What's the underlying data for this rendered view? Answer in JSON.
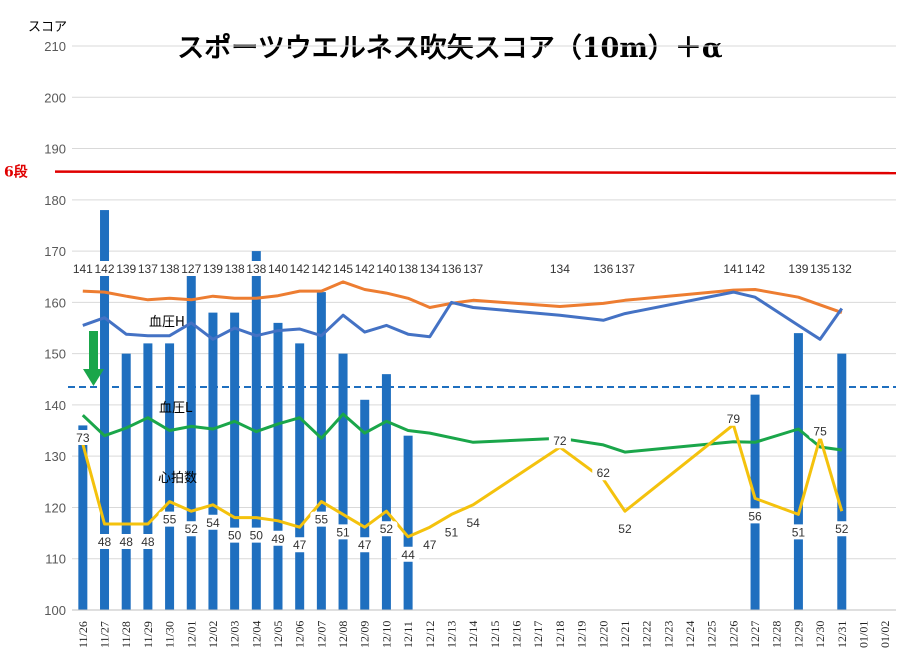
{
  "chart_data": {
    "type": "bar",
    "title": "スポーツウエルネス吹矢スコア（10m）＋α",
    "ylabel": "スコア",
    "ylim": [
      100,
      210
    ],
    "yticks": [
      100,
      110,
      120,
      130,
      140,
      150,
      160,
      170,
      180,
      190,
      200,
      210
    ],
    "grid": true,
    "categories": [
      "11/26",
      "11/27",
      "11/28",
      "11/29",
      "11/30",
      "12/01",
      "12/02",
      "12/03",
      "12/04",
      "12/05",
      "12/06",
      "12/07",
      "12/08",
      "12/09",
      "12/10",
      "12/11",
      "12/12",
      "12/13",
      "12/14",
      "12/15",
      "12/16",
      "12/17",
      "12/18",
      "12/19",
      "12/20",
      "12/21",
      "12/22",
      "12/23",
      "12/24",
      "12/25",
      "12/26",
      "12/27",
      "12/28",
      "12/29",
      "12/30",
      "12/31",
      "01/01",
      "01/02"
    ],
    "series": [
      {
        "kind": "bar",
        "color": "#1f6fbf",
        "points": [
          {
            "x": "11/26",
            "y": 136
          },
          {
            "x": "11/27",
            "y": 178
          },
          {
            "x": "11/28",
            "y": 150
          },
          {
            "x": "11/29",
            "y": 152
          },
          {
            "x": "11/30",
            "y": 152
          },
          {
            "x": "12/01",
            "y": 168
          },
          {
            "x": "12/02",
            "y": 158
          },
          {
            "x": "12/03",
            "y": 158
          },
          {
            "x": "12/04",
            "y": 170
          },
          {
            "x": "12/05",
            "y": 156
          },
          {
            "x": "12/06",
            "y": 152
          },
          {
            "x": "12/07",
            "y": 162
          },
          {
            "x": "12/08",
            "y": 150
          },
          {
            "x": "12/09",
            "y": 141
          },
          {
            "x": "12/10",
            "y": 146
          },
          {
            "x": "12/11",
            "y": 134
          },
          {
            "x": "12/27",
            "y": 142
          },
          {
            "x": "12/29",
            "y": 154
          },
          {
            "x": "12/31",
            "y": 150
          }
        ]
      },
      {
        "name": "血圧H",
        "kind": "line",
        "color": "#4472c4",
        "points": [
          {
            "x": "11/26",
            "y": 155.5
          },
          {
            "x": "11/27",
            "y": 157
          },
          {
            "x": "11/28",
            "y": 153.8
          },
          {
            "x": "11/29",
            "y": 153.5
          },
          {
            "x": "11/30",
            "y": 153.5
          },
          {
            "x": "12/01",
            "y": 156
          },
          {
            "x": "12/02",
            "y": 152.8
          },
          {
            "x": "12/03",
            "y": 155
          },
          {
            "x": "12/04",
            "y": 153.5
          },
          {
            "x": "12/05",
            "y": 154.5
          },
          {
            "x": "12/06",
            "y": 154.8
          },
          {
            "x": "12/07",
            "y": 153.5
          },
          {
            "x": "12/08",
            "y": 157.5
          },
          {
            "x": "12/09",
            "y": 154.2
          },
          {
            "x": "12/10",
            "y": 155.5
          },
          {
            "x": "12/11",
            "y": 153.8
          },
          {
            "x": "12/12",
            "y": 153.3
          },
          {
            "x": "12/13",
            "y": 160
          },
          {
            "x": "12/14",
            "y": 159
          },
          {
            "x": "12/18",
            "y": 157.5
          },
          {
            "x": "12/20",
            "y": 156.5
          },
          {
            "x": "12/21",
            "y": 157.8
          },
          {
            "x": "12/26",
            "y": 162
          },
          {
            "x": "12/27",
            "y": 161
          },
          {
            "x": "12/29",
            "y": 155.5
          },
          {
            "x": "12/30",
            "y": 152.8
          },
          {
            "x": "12/31",
            "y": 158.8
          }
        ]
      },
      {
        "kind": "line",
        "color": "#ed7d31",
        "points": [
          {
            "x": "11/26",
            "y": 162.2
          },
          {
            "x": "11/27",
            "y": 162
          },
          {
            "x": "11/28",
            "y": 161.2
          },
          {
            "x": "11/29",
            "y": 160.5
          },
          {
            "x": "11/30",
            "y": 160.8
          },
          {
            "x": "12/01",
            "y": 160.5
          },
          {
            "x": "12/02",
            "y": 161.2
          },
          {
            "x": "12/03",
            "y": 160.8
          },
          {
            "x": "12/04",
            "y": 160.8
          },
          {
            "x": "12/05",
            "y": 161.3
          },
          {
            "x": "12/06",
            "y": 162.2
          },
          {
            "x": "12/07",
            "y": 162.2
          },
          {
            "x": "12/08",
            "y": 164
          },
          {
            "x": "12/09",
            "y": 162.5
          },
          {
            "x": "12/10",
            "y": 161.8
          },
          {
            "x": "12/11",
            "y": 160.8
          },
          {
            "x": "12/12",
            "y": 159
          },
          {
            "x": "12/13",
            "y": 159.8
          },
          {
            "x": "12/14",
            "y": 160.4
          },
          {
            "x": "12/18",
            "y": 159.2
          },
          {
            "x": "12/20",
            "y": 159.8
          },
          {
            "x": "12/21",
            "y": 160.4
          },
          {
            "x": "12/26",
            "y": 162.4
          },
          {
            "x": "12/27",
            "y": 162.5
          },
          {
            "x": "12/29",
            "y": 161
          },
          {
            "x": "12/31",
            "y": 158
          }
        ]
      },
      {
        "name": "血圧L",
        "kind": "line",
        "color": "#1aa64a",
        "points": [
          {
            "x": "11/26",
            "y": 138
          },
          {
            "x": "11/27",
            "y": 134
          },
          {
            "x": "11/28",
            "y": 135.5
          },
          {
            "x": "11/29",
            "y": 137.5
          },
          {
            "x": "11/30",
            "y": 135
          },
          {
            "x": "12/01",
            "y": 135.8
          },
          {
            "x": "12/02",
            "y": 135.3
          },
          {
            "x": "12/03",
            "y": 136.8
          },
          {
            "x": "12/04",
            "y": 134.8
          },
          {
            "x": "12/05",
            "y": 136.3
          },
          {
            "x": "12/06",
            "y": 137.5
          },
          {
            "x": "12/07",
            "y": 133.5
          },
          {
            "x": "12/08",
            "y": 138.2
          },
          {
            "x": "12/09",
            "y": 134.5
          },
          {
            "x": "12/10",
            "y": 136.8
          },
          {
            "x": "12/11",
            "y": 135
          },
          {
            "x": "12/12",
            "y": 134.5
          },
          {
            "x": "12/14",
            "y": 132.7
          },
          {
            "x": "12/18",
            "y": 133.5
          },
          {
            "x": "12/20",
            "y": 132.2
          },
          {
            "x": "12/21",
            "y": 130.8
          },
          {
            "x": "12/26",
            "y": 132.8
          },
          {
            "x": "12/27",
            "y": 132.7
          },
          {
            "x": "12/29",
            "y": 135.3
          },
          {
            "x": "12/30",
            "y": 131.8
          },
          {
            "x": "12/31",
            "y": 131.2
          }
        ]
      },
      {
        "name": "心拍数",
        "kind": "line",
        "color": "#f4c20d",
        "points": [
          {
            "x": "11/26",
            "y": 73
          },
          {
            "x": "11/27",
            "y": 48
          },
          {
            "x": "11/28",
            "y": 48
          },
          {
            "x": "11/29",
            "y": 48
          },
          {
            "x": "11/30",
            "y": 55
          },
          {
            "x": "12/01",
            "y": 52
          },
          {
            "x": "12/02",
            "y": 54
          },
          {
            "x": "12/03",
            "y": 50
          },
          {
            "x": "12/04",
            "y": 50
          },
          {
            "x": "12/05",
            "y": 49
          },
          {
            "x": "12/06",
            "y": 47
          },
          {
            "x": "12/07",
            "y": 55
          },
          {
            "x": "12/08",
            "y": 51
          },
          {
            "x": "12/09",
            "y": 47
          },
          {
            "x": "12/10",
            "y": 52
          },
          {
            "x": "12/11",
            "y": 44
          },
          {
            "x": "12/12",
            "y": 47
          },
          {
            "x": "12/13",
            "y": 51
          },
          {
            "x": "12/14",
            "y": 54
          },
          {
            "x": "12/18",
            "y": 72
          },
          {
            "x": "12/20",
            "y": 62
          },
          {
            "x": "12/21",
            "y": 52
          },
          {
            "x": "12/26",
            "y": 79
          },
          {
            "x": "12/27",
            "y": 56
          },
          {
            "x": "12/29",
            "y": 51
          },
          {
            "x": "12/30",
            "y": 75
          },
          {
            "x": "12/31",
            "y": 52
          }
        ]
      }
    ],
    "bar_top_labels": [
      {
        "x": "11/26",
        "text": "141"
      },
      {
        "x": "11/27",
        "text": "142"
      },
      {
        "x": "11/28",
        "text": "139"
      },
      {
        "x": "11/29",
        "text": "137"
      },
      {
        "x": "11/30",
        "text": "138"
      },
      {
        "x": "12/01",
        "text": "127"
      },
      {
        "x": "12/02",
        "text": "139"
      },
      {
        "x": "12/03",
        "text": "138"
      },
      {
        "x": "12/04",
        "text": "138"
      },
      {
        "x": "12/05",
        "text": "140"
      },
      {
        "x": "12/06",
        "text": "142"
      },
      {
        "x": "12/07",
        "text": "142"
      },
      {
        "x": "12/08",
        "text": "145"
      },
      {
        "x": "12/09",
        "text": "142"
      },
      {
        "x": "12/10",
        "text": "140"
      },
      {
        "x": "12/11",
        "text": "138"
      },
      {
        "x": "12/12",
        "text": "134"
      },
      {
        "x": "12/13",
        "text": "136"
      },
      {
        "x": "12/14",
        "text": "137"
      },
      {
        "x": "12/18",
        "text": "134"
      },
      {
        "x": "12/20",
        "text": "136"
      },
      {
        "x": "12/21",
        "text": "137"
      },
      {
        "x": "12/26",
        "text": "141"
      },
      {
        "x": "12/27",
        "text": "142"
      },
      {
        "x": "12/29",
        "text": "139"
      },
      {
        "x": "12/30",
        "text": "135"
      },
      {
        "x": "12/31",
        "text": "132"
      }
    ],
    "reference_lines": [
      {
        "label": "6段",
        "y": 185.5,
        "color": "#e00000",
        "style": "solid"
      },
      {
        "label": "",
        "y": 143.5,
        "color": "#1f6fbf",
        "style": "dashed"
      }
    ],
    "annotations": [
      "血圧H",
      "血圧L",
      "心拍数"
    ]
  }
}
